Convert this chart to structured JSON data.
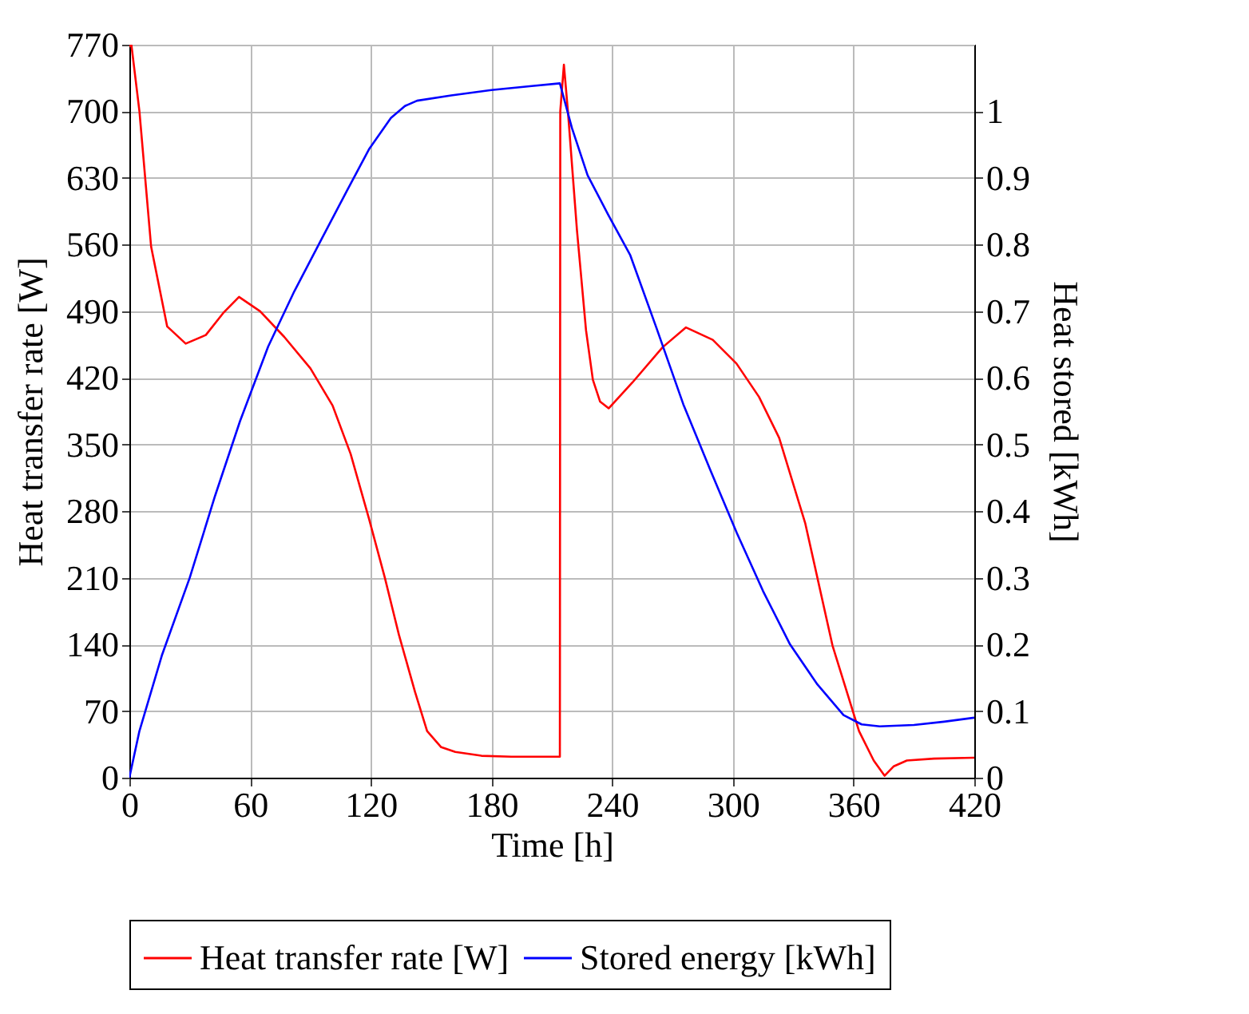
{
  "chart_data": {
    "type": "line",
    "xlabel": "Time [h]",
    "ylabel": "Heat transfer rate [W]",
    "y2label": "Heat stored [kWh]",
    "xlim": [
      0,
      420
    ],
    "xticks": [
      0,
      60,
      120,
      180,
      240,
      300,
      360,
      420
    ],
    "ylim": [
      0,
      770
    ],
    "yticks": [
      0,
      70,
      140,
      210,
      280,
      350,
      420,
      490,
      560,
      630,
      700,
      770
    ],
    "y2lim": [
      0,
      1.1
    ],
    "y2ticks": [
      0,
      0.1,
      0.2,
      0.3,
      0.4,
      0.5,
      0.6,
      0.7,
      0.8,
      0.9,
      1
    ],
    "grid": true,
    "legend": "bottom",
    "line_style": "solid",
    "marker": "none",
    "series": [
      {
        "name": "Heat transfer rate [W]",
        "color": "#ff0000",
        "x": [
          0,
          1,
          5,
          10.8,
          18.8,
          28,
          38,
          46.6,
          54.5,
          65,
          77,
          90,
          101,
          110,
          119,
          127,
          134,
          142,
          148,
          155,
          162,
          175,
          190,
          214,
          214.2,
          216,
          218,
          222.5,
          227,
          230.4,
          234,
          238.3,
          250,
          265,
          276.7,
          290,
          301.8,
          313,
          323,
          336,
          349.5,
          362.7,
          370,
          375.4,
          380,
          386.5,
          400,
          420
        ],
        "values": [
          768,
          770,
          700,
          558,
          474,
          456,
          465,
          488,
          505,
          490,
          463,
          430,
          391,
          340,
          273,
          210,
          150,
          90,
          49,
          32,
          27,
          23,
          22,
          22,
          700,
          749,
          700,
          575,
          470,
          418,
          395,
          388,
          415,
          452,
          473,
          460,
          435,
          400,
          357,
          267,
          139,
          49,
          18,
          2,
          12,
          18,
          20,
          21
        ]
      },
      {
        "name": "Stored energy [kWh]",
        "color": "#0000ff",
        "axis": "y2",
        "x": [
          0,
          5,
          16.1,
          30,
          42.6,
          55,
          69,
          82,
          95.5,
          108,
          119.3,
          130,
          137,
          143,
          160,
          180,
          200,
          214,
          220,
          227.8,
          238,
          249,
          262,
          275.4,
          289,
          302,
          315,
          328.4,
          342,
          355,
          364,
          373,
          390,
          405,
          420
        ],
        "values": [
          0,
          0.07,
          0.183,
          0.3,
          0.423,
          0.535,
          0.647,
          0.73,
          0.808,
          0.88,
          0.944,
          0.99,
          1.008,
          1.016,
          1.024,
          1.032,
          1.038,
          1.042,
          0.975,
          0.904,
          0.845,
          0.784,
          0.675,
          0.56,
          0.46,
          0.367,
          0.28,
          0.2,
          0.14,
          0.094,
          0.08,
          0.077,
          0.079,
          0.084,
          0.09
        ]
      }
    ]
  }
}
